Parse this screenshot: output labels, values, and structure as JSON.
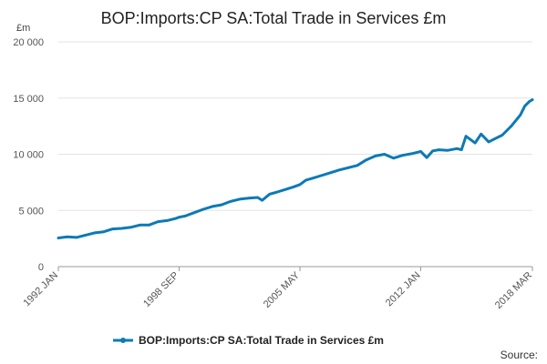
{
  "chart_data": {
    "type": "line",
    "title": "BOP:Imports:CP SA:Total Trade in Services £m",
    "yunit": "£m",
    "ylim": [
      0,
      20000
    ],
    "yticks": [
      0,
      5000,
      10000,
      15000,
      20000
    ],
    "ytick_labels": [
      "0",
      "5 000",
      "10 000",
      "15 000",
      "20 000"
    ],
    "xlim": [
      "1992 JAN",
      "2018 MAR"
    ],
    "xticks": [
      "1992 JAN",
      "1998 SEP",
      "2005 MAY",
      "2012 JAN",
      "2018 MAR"
    ],
    "grid": true,
    "legend_position": "bottom",
    "source_label": "Source:",
    "series": [
      {
        "name": "BOP:Imports:CP SA:Total Trade in Services £m",
        "color": "#0c7ab5",
        "points": [
          [
            "1992-01",
            2550
          ],
          [
            "1992-07",
            2650
          ],
          [
            "1993-01",
            2600
          ],
          [
            "1993-07",
            2800
          ],
          [
            "1994-01",
            3000
          ],
          [
            "1994-07",
            3100
          ],
          [
            "1995-01",
            3350
          ],
          [
            "1995-07",
            3400
          ],
          [
            "1996-01",
            3500
          ],
          [
            "1996-07",
            3700
          ],
          [
            "1997-01",
            3700
          ],
          [
            "1997-07",
            4000
          ],
          [
            "1998-01",
            4100
          ],
          [
            "1998-07",
            4300
          ],
          [
            "1998-09",
            4400
          ],
          [
            "1999-01",
            4500
          ],
          [
            "1999-07",
            4800
          ],
          [
            "2000-01",
            5100
          ],
          [
            "2000-07",
            5350
          ],
          [
            "2001-01",
            5500
          ],
          [
            "2001-07",
            5800
          ],
          [
            "2002-01",
            6000
          ],
          [
            "2002-07",
            6100
          ],
          [
            "2003-01",
            6150
          ],
          [
            "2003-04",
            5900
          ],
          [
            "2003-09",
            6450
          ],
          [
            "2004-01",
            6600
          ],
          [
            "2004-07",
            6850
          ],
          [
            "2005-01",
            7100
          ],
          [
            "2005-05",
            7300
          ],
          [
            "2005-09",
            7700
          ],
          [
            "2006-01",
            7850
          ],
          [
            "2006-07",
            8100
          ],
          [
            "2007-01",
            8350
          ],
          [
            "2007-07",
            8600
          ],
          [
            "2008-01",
            8800
          ],
          [
            "2008-07",
            9000
          ],
          [
            "2009-01",
            9500
          ],
          [
            "2009-07",
            9850
          ],
          [
            "2010-01",
            10000
          ],
          [
            "2010-07",
            9650
          ],
          [
            "2011-01",
            9900
          ],
          [
            "2011-07",
            10050
          ],
          [
            "2012-01",
            10250
          ],
          [
            "2012-05",
            9700
          ],
          [
            "2012-09",
            10300
          ],
          [
            "2013-01",
            10400
          ],
          [
            "2013-07",
            10350
          ],
          [
            "2014-01",
            10500
          ],
          [
            "2014-04",
            10400
          ],
          [
            "2014-07",
            11600
          ],
          [
            "2015-01",
            11000
          ],
          [
            "2015-05",
            11800
          ],
          [
            "2015-10",
            11100
          ],
          [
            "2016-01",
            11300
          ],
          [
            "2016-07",
            11700
          ],
          [
            "2017-01",
            12500
          ],
          [
            "2017-07",
            13500
          ],
          [
            "2017-10",
            14300
          ],
          [
            "2018-01",
            14700
          ],
          [
            "2018-03",
            14850
          ]
        ]
      }
    ]
  }
}
